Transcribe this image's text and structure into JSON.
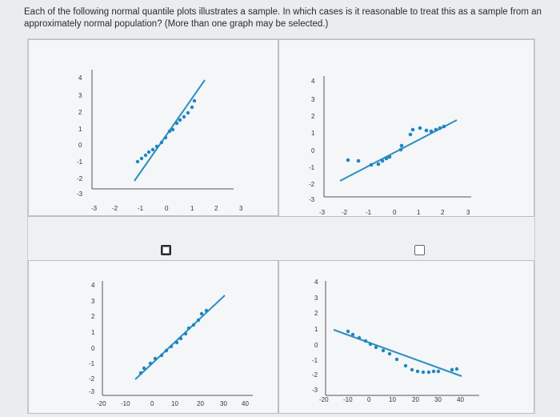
{
  "question": {
    "text": "Each of the following normal quantile plots illustrates a sample. In which cases is it reasonable to treat this as a sample from an approximately normal population? (More than one graph may be selected.)"
  },
  "colors": {
    "line": "#2b8fc0",
    "dots": "#1f86c2",
    "axis": "#555555"
  },
  "plots": [
    {
      "id": "top-left",
      "x_ticks": [
        "-3",
        "-2",
        "-1",
        "0",
        "1",
        "2",
        "3"
      ],
      "y_ticks": [
        "4",
        "3",
        "2",
        "1",
        "0",
        "-1",
        "-2",
        "-3"
      ],
      "selected": true
    },
    {
      "id": "top-right",
      "x_ticks": [
        "-3",
        "-2",
        "-1",
        "0",
        "1",
        "2",
        "3"
      ],
      "y_ticks": [
        "4",
        "3",
        "2",
        "1",
        "0",
        "-1",
        "-2",
        "-3"
      ],
      "selected": false
    },
    {
      "id": "bottom-left",
      "x_ticks": [
        "-20",
        "-10",
        "0",
        "10",
        "20",
        "30",
        "40"
      ],
      "y_ticks": [
        "4",
        "3",
        "2",
        "1",
        "0",
        "-1",
        "-2",
        "-3"
      ],
      "selected": null
    },
    {
      "id": "bottom-right",
      "x_ticks": [
        "-20",
        "-10",
        "0",
        "10",
        "20",
        "30",
        "40"
      ],
      "y_ticks": [
        "4",
        "3",
        "2",
        "1",
        "0",
        "-1",
        "-2",
        "-3"
      ],
      "selected": null
    }
  ]
}
